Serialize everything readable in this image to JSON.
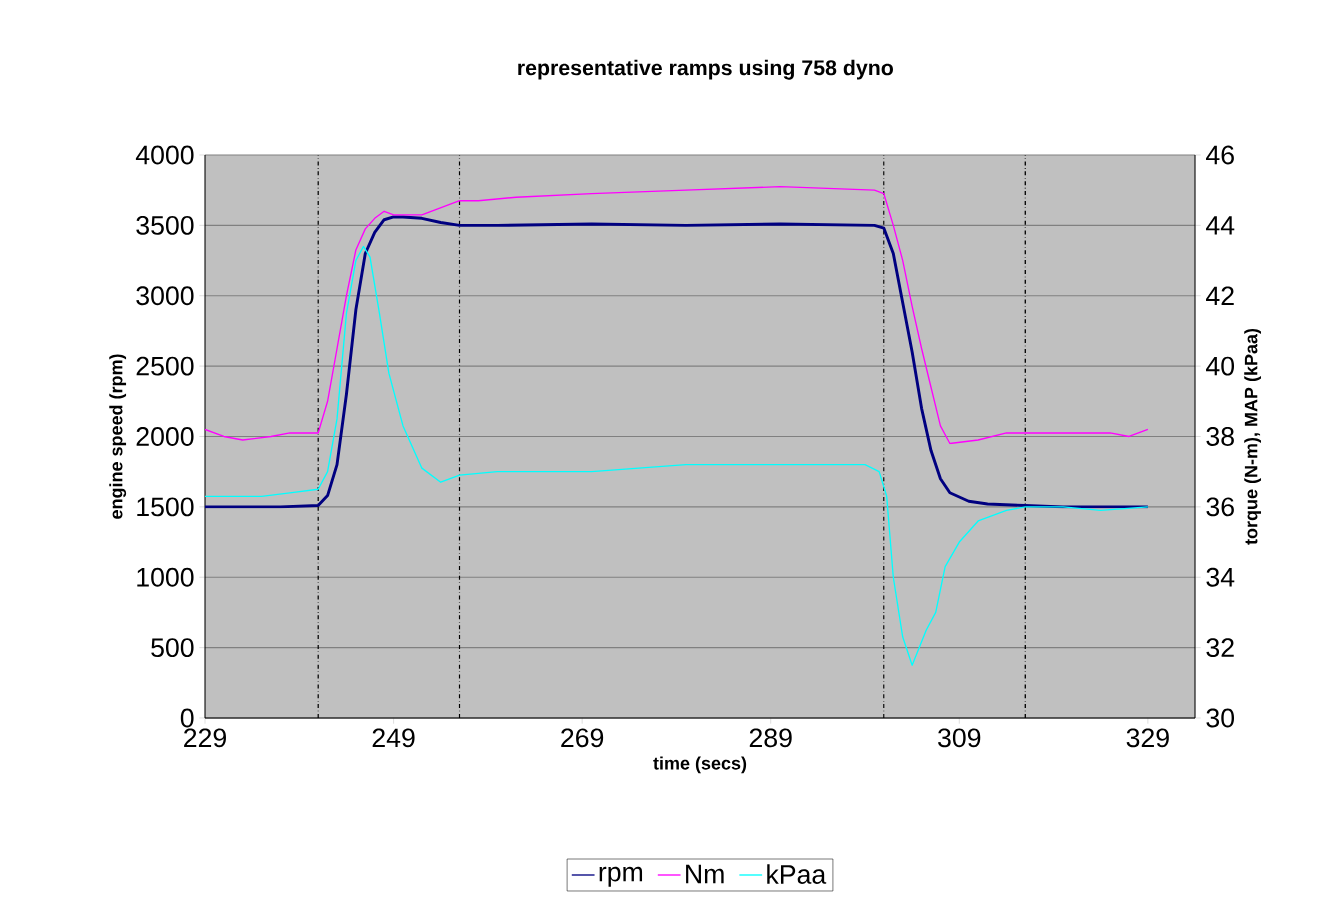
{
  "chart_data": {
    "type": "line",
    "title": "representative ramps using 758 dyno",
    "xlabel": "time (secs)",
    "ylabel": "engine speed (rpm)",
    "y2label": "torque (N-m), MAP (kPaa)",
    "xlim": [
      229,
      334
    ],
    "xticks": [
      229,
      249,
      269,
      289,
      309,
      329
    ],
    "ylim": [
      0,
      4000
    ],
    "yticks": [
      0,
      500,
      1000,
      1500,
      2000,
      2500,
      3000,
      3500,
      4000
    ],
    "y2lim": [
      30,
      46
    ],
    "y2ticks": [
      30,
      32,
      34,
      36,
      38,
      40,
      42,
      44,
      46
    ],
    "grid": "y",
    "legend": "bottom",
    "marker": "none",
    "line_style": "solid",
    "ref_lines": [
      {
        "axis": "x",
        "value": 241,
        "line_style": "dashdot",
        "color": "#000000"
      },
      {
        "axis": "x",
        "value": 256,
        "line_style": "dashdot",
        "color": "#000000"
      },
      {
        "axis": "x",
        "value": 301,
        "line_style": "dashdot",
        "color": "#000000"
      },
      {
        "axis": "x",
        "value": 316,
        "line_style": "dashdot",
        "color": "#000000"
      }
    ],
    "series": [
      {
        "name": "rpm",
        "color": "#000080",
        "x": [
          229,
          233,
          237,
          241,
          242,
          243,
          244,
          245,
          246,
          247,
          248,
          249,
          250,
          252,
          254,
          256,
          260,
          270,
          280,
          290,
          300,
          301,
          302,
          303,
          304,
          305,
          306,
          307,
          308,
          310,
          312,
          316,
          320,
          329
        ],
        "values": [
          1500,
          1500,
          1500,
          1510,
          1580,
          1800,
          2300,
          2900,
          3300,
          3450,
          3540,
          3560,
          3560,
          3550,
          3520,
          3500,
          3500,
          3510,
          3500,
          3510,
          3500,
          3480,
          3300,
          2950,
          2600,
          2200,
          1900,
          1700,
          1600,
          1540,
          1520,
          1510,
          1500,
          1500
        ]
      },
      {
        "name": "Nm",
        "color": "#ff00ff",
        "axis": "y2",
        "x": [
          229,
          231,
          233,
          236,
          238,
          241,
          242,
          243,
          244,
          245,
          246,
          247,
          248,
          249,
          252,
          254,
          256,
          258,
          262,
          270,
          280,
          290,
          300,
          301,
          302,
          303,
          304,
          305,
          306,
          307,
          308,
          311,
          314,
          316,
          320,
          325,
          327,
          329
        ],
        "values": [
          38.2,
          38.0,
          37.9,
          38.0,
          38.1,
          38.1,
          39.0,
          40.5,
          42.0,
          43.3,
          43.9,
          44.2,
          44.4,
          44.3,
          44.3,
          44.5,
          44.7,
          44.7,
          44.8,
          44.9,
          45.0,
          45.1,
          45.0,
          44.9,
          44.0,
          43.0,
          41.7,
          40.5,
          39.4,
          38.3,
          37.8,
          37.9,
          38.1,
          38.1,
          38.1,
          38.1,
          38.0,
          38.2
        ]
      },
      {
        "name": "kPaa",
        "color": "#00ffff",
        "axis": "y2",
        "x": [
          229,
          235,
          238,
          241,
          242,
          243,
          244,
          245,
          245.8,
          246.5,
          247.5,
          248.5,
          250,
          252,
          254,
          256,
          260,
          270,
          280,
          290,
          299,
          300.5,
          301.3,
          302,
          303,
          304,
          305.5,
          306.5,
          307.5,
          309,
          311,
          314,
          316,
          320,
          324,
          329
        ],
        "values": [
          36.3,
          36.3,
          36.4,
          36.5,
          37.0,
          38.5,
          41.5,
          43.0,
          43.4,
          43.1,
          41.5,
          39.8,
          38.3,
          37.1,
          36.7,
          36.9,
          37.0,
          37.0,
          37.2,
          37.2,
          37.2,
          37.0,
          36.3,
          34.0,
          32.3,
          31.5,
          32.5,
          33.0,
          34.3,
          35.0,
          35.6,
          35.9,
          36.0,
          36.0,
          35.9,
          36.0
        ]
      }
    ]
  }
}
